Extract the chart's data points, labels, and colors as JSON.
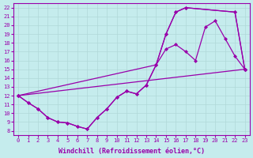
{
  "xlabel": "Windchill (Refroidissement éolien,°C)",
  "xlim": [
    -0.5,
    23.5
  ],
  "ylim": [
    7.5,
    22.5
  ],
  "xticks": [
    0,
    1,
    2,
    3,
    4,
    5,
    6,
    7,
    8,
    9,
    10,
    11,
    12,
    13,
    14,
    15,
    16,
    17,
    18,
    19,
    20,
    21,
    22,
    23
  ],
  "yticks": [
    8,
    9,
    10,
    11,
    12,
    13,
    14,
    15,
    16,
    17,
    18,
    19,
    20,
    21,
    22
  ],
  "background_color": "#c5eced",
  "grid_color": "#b0d8d8",
  "line_color": "#9900aa",
  "line1_x": [
    0,
    1,
    2,
    3,
    4,
    5,
    6,
    7,
    8,
    9,
    10,
    11,
    12,
    13,
    14,
    15,
    16,
    17,
    18,
    19,
    20,
    21,
    22,
    23
  ],
  "line1_y": [
    12,
    11.2,
    10.5,
    9.5,
    9.0,
    8.9,
    8.5,
    8.2,
    9.5,
    10.5,
    11.8,
    12.5,
    12.2,
    13.2,
    15.5,
    17.3,
    17.8,
    17.0,
    16.0,
    19.8,
    20.5,
    18.5,
    16.5,
    15.0
  ],
  "line2_x": [
    0,
    1,
    2,
    3,
    4,
    5,
    6,
    7,
    8,
    9,
    10,
    11,
    12,
    13,
    14,
    15,
    16,
    17,
    22,
    23
  ],
  "line2_y": [
    12,
    11.2,
    10.5,
    9.5,
    9.0,
    8.9,
    8.5,
    8.2,
    9.5,
    10.5,
    11.8,
    12.5,
    12.2,
    13.2,
    15.5,
    19.0,
    21.5,
    22.0,
    21.5,
    15.0
  ],
  "line3_x": [
    0,
    14,
    15,
    16,
    17,
    22,
    23
  ],
  "line3_y": [
    12,
    15.5,
    19.0,
    21.5,
    22.0,
    21.5,
    15.0
  ],
  "line4_x": [
    0,
    23
  ],
  "line4_y": [
    12,
    15.0
  ],
  "marker": "D",
  "markersize": 2.0,
  "linewidth": 0.9,
  "tick_fontsize": 5,
  "label_fontsize": 6
}
